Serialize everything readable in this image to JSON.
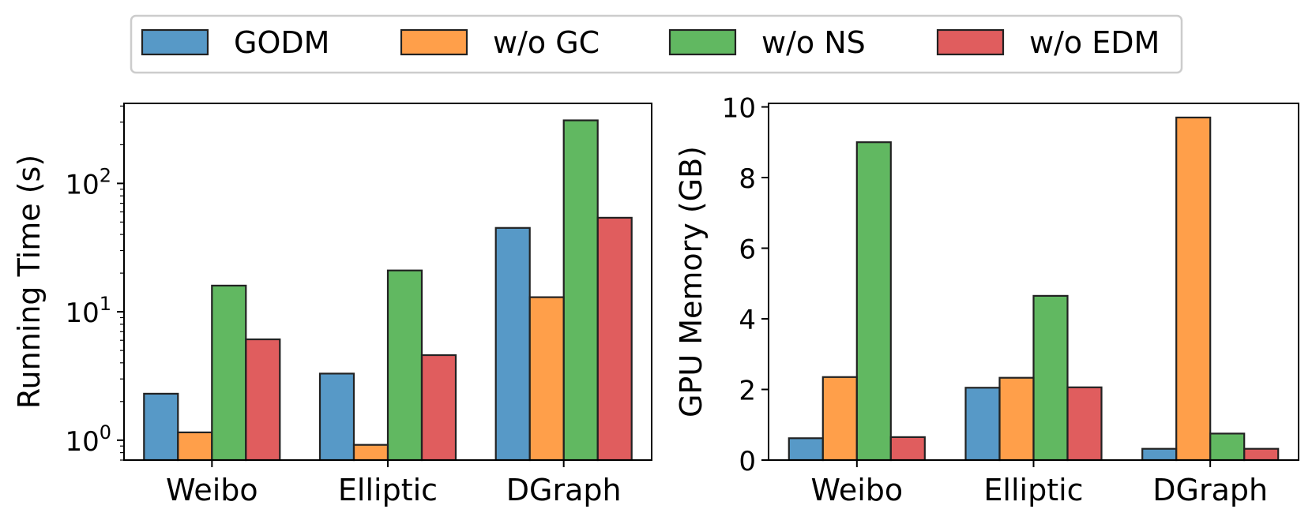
{
  "legend": [
    {
      "label": "GODM",
      "color": "#1f77b4"
    },
    {
      "label": "w/o GC",
      "color": "#ff7f0e"
    },
    {
      "label": "w/o NS",
      "color": "#2ca02c"
    },
    {
      "label": "w/o EDM",
      "color": "#d62728"
    }
  ],
  "chart_data": [
    {
      "type": "bar",
      "title": "",
      "xlabel": "",
      "ylabel": "Running Time (s)",
      "yscale": "log",
      "ylim": [
        0.7,
        420
      ],
      "categories": [
        "Weibo",
        "Elliptic",
        "DGraph"
      ],
      "yticks": [
        1,
        10,
        100
      ],
      "ytick_labels": [
        {
          "base": "10",
          "exp": "0"
        },
        {
          "base": "10",
          "exp": "1"
        },
        {
          "base": "10",
          "exp": "2"
        }
      ],
      "series": [
        {
          "name": "GODM",
          "values": [
            2.3,
            3.3,
            45
          ]
        },
        {
          "name": "w/o GC",
          "values": [
            1.15,
            0.92,
            13
          ]
        },
        {
          "name": "w/o NS",
          "values": [
            16,
            21,
            310
          ]
        },
        {
          "name": "w/o EDM",
          "values": [
            6.1,
            4.6,
            54
          ]
        }
      ]
    },
    {
      "type": "bar",
      "title": "",
      "xlabel": "",
      "ylabel": "GPU Memory (GB)",
      "yscale": "linear",
      "ylim": [
        0,
        10.1
      ],
      "categories": [
        "Weibo",
        "Elliptic",
        "DGraph"
      ],
      "yticks": [
        0,
        2,
        4,
        6,
        8,
        10
      ],
      "ytick_labels": [
        "0",
        "2",
        "4",
        "6",
        "8",
        "10"
      ],
      "series": [
        {
          "name": "GODM",
          "values": [
            0.62,
            2.05,
            0.32
          ]
        },
        {
          "name": "w/o GC",
          "values": [
            2.35,
            2.33,
            9.7
          ]
        },
        {
          "name": "w/o NS",
          "values": [
            9.0,
            4.65,
            0.75
          ]
        },
        {
          "name": "w/o EDM",
          "values": [
            0.65,
            2.06,
            0.32
          ]
        }
      ]
    }
  ]
}
